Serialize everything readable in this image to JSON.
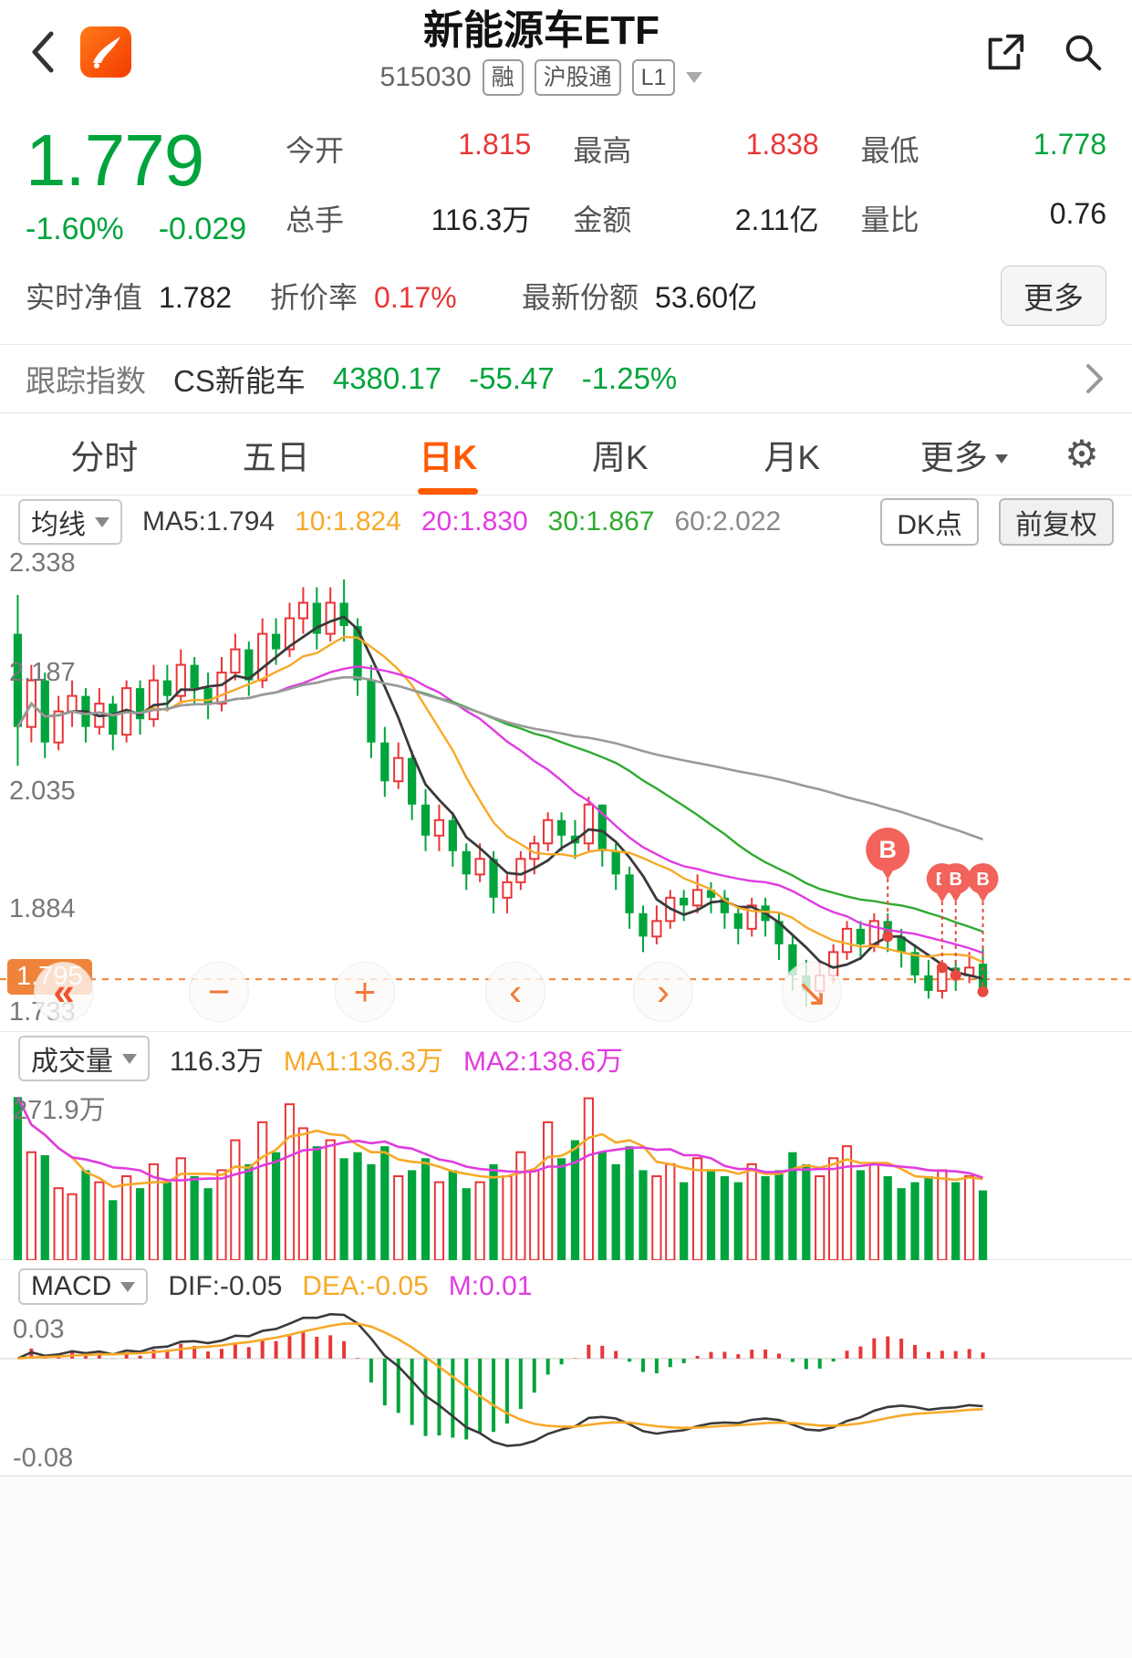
{
  "header": {
    "title": "新能源车ETF",
    "code": "515030",
    "badges": [
      "融",
      "沪股通",
      "L1"
    ]
  },
  "quote": {
    "price": "1.779",
    "change_pct": "-1.60%",
    "change_val": "-0.029",
    "stats": [
      {
        "label": "今开",
        "value": "1.815",
        "color": "#e83637"
      },
      {
        "label": "最高",
        "value": "1.838",
        "color": "#e83637"
      },
      {
        "label": "最低",
        "value": "1.778",
        "color": "#00a43c"
      },
      {
        "label": "总手",
        "value": "116.3万",
        "color": "#222222"
      },
      {
        "label": "金额",
        "value": "2.11亿",
        "color": "#222222"
      },
      {
        "label": "量比",
        "value": "0.76",
        "color": "#222222"
      }
    ],
    "row3": [
      {
        "label": "实时净值",
        "value": "1.782",
        "color": "#222222"
      },
      {
        "label": "折价率",
        "value": "0.17%",
        "color": "#e83637"
      },
      {
        "label": "最新份额",
        "value": "53.60亿",
        "color": "#222222"
      }
    ],
    "more_label": "更多"
  },
  "index": {
    "label": "跟踪指数",
    "name": "CS新能车",
    "value": "4380.17",
    "change": "-55.47",
    "pct": "-1.25%"
  },
  "tabs": {
    "items": [
      "分时",
      "五日",
      "日K",
      "周K",
      "月K",
      "更多"
    ],
    "active": "日K"
  },
  "kline": {
    "ma_selector": "均线",
    "legend": [
      {
        "text": "MA5:1.794",
        "color": "#3a3a3a"
      },
      {
        "text": "10:1.824",
        "color": "#f7a928"
      },
      {
        "text": "20:1.830",
        "color": "#e03ce0"
      },
      {
        "text": "30:1.867",
        "color": "#2faa2f"
      },
      {
        "text": "60:2.022",
        "color": "#8a8a8a"
      }
    ],
    "dk_label": "DK点",
    "fq_label": "前复权",
    "y_labels": [
      "2.338",
      "2.187",
      "2.035",
      "1.884",
      "1.733"
    ],
    "price_tag": "1.795",
    "controls": [
      {
        "name": "fast-backward",
        "symbol": "«"
      },
      {
        "name": "zoom-out",
        "symbol": "−"
      },
      {
        "name": "zoom-in",
        "symbol": "+"
      },
      {
        "name": "pan-left",
        "symbol": "‹"
      },
      {
        "name": "pan-right",
        "symbol": "›"
      },
      {
        "name": "trend-arrow",
        "symbol": "↘"
      }
    ]
  },
  "volume": {
    "selector": "成交量",
    "current": "116.3万",
    "ma1": "MA1:136.3万",
    "ma2": "MA2:138.6万",
    "y_max": "271.9万"
  },
  "macd": {
    "selector": "MACD",
    "dif": "DIF:-0.05",
    "dea": "DEA:-0.05",
    "m": "M:0.01",
    "y_max": "0.03",
    "y_min": "-0.08"
  },
  "colors": {
    "up": "#e83637",
    "down": "#00a43c",
    "accent": "#ff5a00",
    "tag": "#ef8339",
    "ma1": "#f7a928",
    "ma2": "#e03ce0"
  },
  "chart_data": {
    "type": "candlestick",
    "price_domain": [
      1.727,
      2.35
    ],
    "volume_domain": [
      0,
      280
    ],
    "macd_domain": [
      -0.09,
      0.035
    ],
    "current_price": 1.795,
    "ma": [
      {
        "period": 5,
        "color": "#3a3a3a",
        "width": 2.8
      },
      {
        "period": 10,
        "color": "#f7a928",
        "width": 2.4
      },
      {
        "period": 20,
        "color": "#e03ce0",
        "width": 2.4
      },
      {
        "period": 30,
        "color": "#2faa2f",
        "width": 2.4
      },
      {
        "period": 60,
        "color": "#9a9a9a",
        "width": 2.6
      }
    ],
    "candles": [
      [
        2.24,
        2.29,
        2.07,
        2.12
      ],
      [
        2.12,
        2.2,
        2.1,
        2.18
      ],
      [
        2.18,
        2.19,
        2.08,
        2.1
      ],
      [
        2.1,
        2.16,
        2.09,
        2.14
      ],
      [
        2.14,
        2.18,
        2.12,
        2.16
      ],
      [
        2.16,
        2.17,
        2.1,
        2.12
      ],
      [
        2.12,
        2.17,
        2.11,
        2.15
      ],
      [
        2.15,
        2.16,
        2.09,
        2.11
      ],
      [
        2.11,
        2.18,
        2.1,
        2.17
      ],
      [
        2.17,
        2.18,
        2.11,
        2.13
      ],
      [
        2.13,
        2.2,
        2.12,
        2.18
      ],
      [
        2.18,
        2.2,
        2.14,
        2.16
      ],
      [
        2.16,
        2.22,
        2.15,
        2.2
      ],
      [
        2.2,
        2.21,
        2.15,
        2.17
      ],
      [
        2.17,
        2.19,
        2.13,
        2.15
      ],
      [
        2.15,
        2.21,
        2.14,
        2.19
      ],
      [
        2.19,
        2.24,
        2.18,
        2.22
      ],
      [
        2.22,
        2.23,
        2.16,
        2.18
      ],
      [
        2.18,
        2.26,
        2.17,
        2.24
      ],
      [
        2.24,
        2.26,
        2.2,
        2.22
      ],
      [
        2.22,
        2.28,
        2.21,
        2.26
      ],
      [
        2.26,
        2.3,
        2.24,
        2.28
      ],
      [
        2.28,
        2.3,
        2.22,
        2.24
      ],
      [
        2.24,
        2.3,
        2.23,
        2.28
      ],
      [
        2.28,
        2.31,
        2.23,
        2.25
      ],
      [
        2.25,
        2.26,
        2.16,
        2.18
      ],
      [
        2.18,
        2.2,
        2.08,
        2.1
      ],
      [
        2.1,
        2.12,
        2.03,
        2.05
      ],
      [
        2.05,
        2.1,
        2.04,
        2.08
      ],
      [
        2.08,
        2.09,
        2.0,
        2.02
      ],
      [
        2.02,
        2.04,
        1.96,
        1.98
      ],
      [
        1.98,
        2.02,
        1.96,
        2.0
      ],
      [
        2.0,
        2.01,
        1.94,
        1.96
      ],
      [
        1.96,
        1.97,
        1.91,
        1.93
      ],
      [
        1.93,
        1.97,
        1.92,
        1.95
      ],
      [
        1.95,
        1.96,
        1.88,
        1.9
      ],
      [
        1.9,
        1.93,
        1.88,
        1.92
      ],
      [
        1.92,
        1.96,
        1.91,
        1.95
      ],
      [
        1.95,
        1.98,
        1.93,
        1.97
      ],
      [
        1.97,
        2.01,
        1.96,
        2.0
      ],
      [
        2.0,
        2.01,
        1.96,
        1.98
      ],
      [
        1.98,
        2.0,
        1.95,
        1.97
      ],
      [
        1.97,
        2.03,
        1.96,
        2.02
      ],
      [
        2.02,
        2.02,
        1.94,
        1.96
      ],
      [
        1.96,
        1.97,
        1.91,
        1.93
      ],
      [
        1.93,
        1.94,
        1.86,
        1.88
      ],
      [
        1.88,
        1.89,
        1.83,
        1.85
      ],
      [
        1.85,
        1.89,
        1.84,
        1.87
      ],
      [
        1.87,
        1.91,
        1.86,
        1.9
      ],
      [
        1.9,
        1.91,
        1.87,
        1.89
      ],
      [
        1.89,
        1.93,
        1.88,
        1.91
      ],
      [
        1.91,
        1.92,
        1.88,
        1.9
      ],
      [
        1.9,
        1.91,
        1.86,
        1.88
      ],
      [
        1.88,
        1.89,
        1.84,
        1.86
      ],
      [
        1.86,
        1.9,
        1.85,
        1.89
      ],
      [
        1.89,
        1.9,
        1.85,
        1.87
      ],
      [
        1.87,
        1.88,
        1.82,
        1.84
      ],
      [
        1.84,
        1.85,
        1.78,
        1.8
      ],
      [
        1.8,
        1.82,
        1.76,
        1.78
      ],
      [
        1.78,
        1.82,
        1.77,
        1.8
      ],
      [
        1.8,
        1.84,
        1.79,
        1.83
      ],
      [
        1.83,
        1.87,
        1.82,
        1.86
      ],
      [
        1.86,
        1.87,
        1.82,
        1.84
      ],
      [
        1.84,
        1.88,
        1.83,
        1.87
      ],
      [
        1.87,
        1.88,
        1.83,
        1.85
      ],
      [
        1.85,
        1.86,
        1.81,
        1.83
      ],
      [
        1.83,
        1.84,
        1.79,
        1.8
      ],
      [
        1.8,
        1.82,
        1.77,
        1.78
      ],
      [
        1.78,
        1.82,
        1.77,
        1.81
      ],
      [
        1.81,
        1.82,
        1.78,
        1.8
      ],
      [
        1.8,
        1.83,
        1.79,
        1.81
      ],
      [
        1.815,
        1.838,
        1.778,
        1.779
      ]
    ],
    "volumes": [
      272,
      180,
      175,
      120,
      110,
      150,
      130,
      100,
      140,
      120,
      160,
      130,
      170,
      140,
      120,
      150,
      200,
      160,
      230,
      180,
      260,
      220,
      190,
      200,
      170,
      180,
      160,
      190,
      140,
      150,
      170,
      130,
      150,
      120,
      130,
      160,
      140,
      180,
      150,
      230,
      170,
      200,
      270,
      180,
      160,
      190,
      150,
      140,
      160,
      130,
      170,
      150,
      140,
      130,
      160,
      140,
      150,
      180,
      160,
      140,
      170,
      190,
      150,
      160,
      140,
      120,
      130,
      140,
      150,
      130,
      140,
      116.3
    ],
    "pins": [
      {
        "label": "B",
        "i": 64,
        "big": true
      },
      {
        "label": "B",
        "i": 68,
        "big": false
      },
      {
        "label": "B",
        "i": 69,
        "big": false
      },
      {
        "label": "B",
        "i": 71,
        "big": false
      }
    ]
  }
}
